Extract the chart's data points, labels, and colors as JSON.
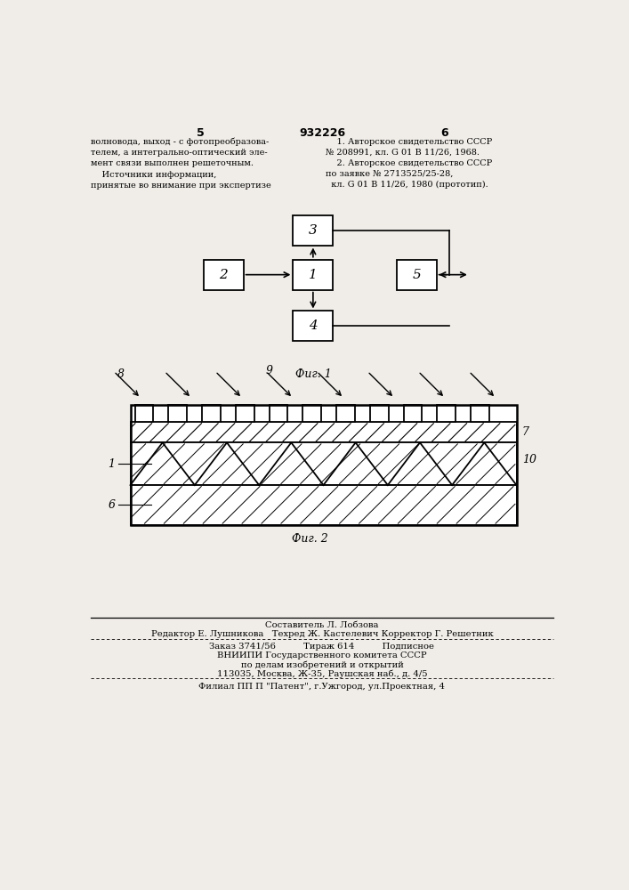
{
  "page_number_left": "5",
  "page_number_center": "932226",
  "page_number_right": "6",
  "text_left": "волновода, выход - с фотопреобразова-\nтелем, а интегрально-оптический эле-\nмент связи выполнен решеточным.\n    Источники информации,\nпринятые во внимание при экспертизе",
  "text_right": "    1. Авторское свидетельство СССР\n№ 208991, кл. G 01 В 11/26, 1968.\n    2. Авторское свидетельство СССР\nпо заявке № 2713525/25-28,\n  кл. G 01 В 11/26, 1980 (прототип).",
  "fig1_label": "Фиг. 1",
  "fig2_label": "Фиг. 2",
  "footer_comp": "Составитель Л. Лобзова",
  "footer_edit": "Редактор Е. Лушникова   Техред Ж. Кастелевич Корректор Г. Решетник",
  "footer_order": "Заказ 3741/56          Тираж 614          Подписное",
  "footer_org1": "ВНИИПИ Государственного комитета СССР",
  "footer_org2": "по делам изобретений и открытий",
  "footer_addr": "113035, Москва, Ж-35, Раушская наб., д. 4/5",
  "footer_branch": "Филиал ПП П \"Патент\", г.Ужгород, ул.Проектная, 4",
  "bg_color": "#f0ede8"
}
